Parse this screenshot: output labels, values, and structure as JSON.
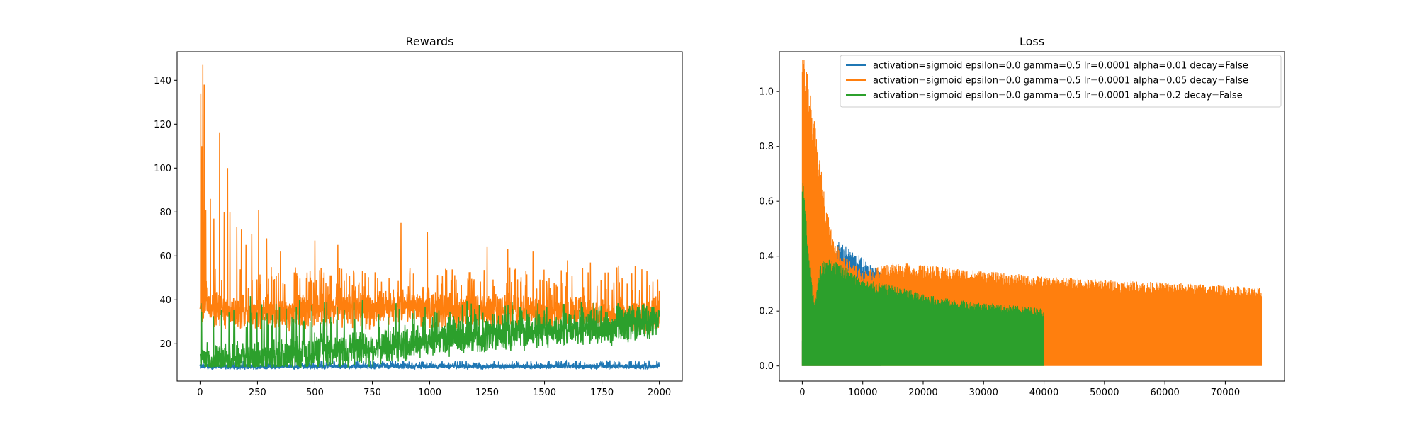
{
  "chart_data": [
    {
      "type": "line",
      "title": "Rewards",
      "xlabel": "",
      "ylabel": "",
      "xlim": [
        -100,
        2100
      ],
      "ylim": [
        3,
        153
      ],
      "xticks": [
        0,
        250,
        500,
        750,
        1000,
        1250,
        1500,
        1750,
        2000
      ],
      "yticks": [
        20,
        40,
        60,
        80,
        100,
        120,
        140
      ],
      "grid": false,
      "series": [
        {
          "color": "#1f77b4",
          "style": "noisy-band",
          "x_range": [
            0,
            2000
          ],
          "points": [
            [
              0,
              9.5
            ],
            [
              500,
              9.6
            ],
            [
              1000,
              9.7
            ],
            [
              1500,
              9.7
            ],
            [
              2000,
              9.6
            ]
          ],
          "low": 8,
          "high": 12
        },
        {
          "color": "#ff7f0e",
          "style": "noisy-band",
          "x_range": [
            0,
            2000
          ],
          "points": [
            [
              0,
              33
            ],
            [
              20,
              40
            ],
            [
              50,
              36
            ],
            [
              100,
              35
            ],
            [
              250,
              34
            ],
            [
              500,
              35
            ],
            [
              750,
              36
            ],
            [
              1000,
              36
            ],
            [
              1250,
              35
            ],
            [
              1500,
              34
            ],
            [
              1750,
              33
            ],
            [
              2000,
              32
            ]
          ],
          "spikes": [
            [
              3,
              134
            ],
            [
              8,
              110
            ],
            [
              12,
              147
            ],
            [
              18,
              138
            ],
            [
              25,
              81
            ],
            [
              45,
              86
            ],
            [
              60,
              77
            ],
            [
              85,
              116
            ],
            [
              105,
              80
            ],
            [
              120,
              100
            ],
            [
              130,
              80
            ],
            [
              160,
              73
            ],
            [
              180,
              72
            ],
            [
              200,
              65
            ],
            [
              225,
              70
            ],
            [
              255,
              81
            ],
            [
              290,
              68
            ],
            [
              350,
              62
            ],
            [
              500,
              67
            ],
            [
              600,
              65
            ],
            [
              875,
              75
            ],
            [
              990,
              71
            ],
            [
              1250,
              64
            ],
            [
              1340,
              63
            ],
            [
              1450,
              62
            ],
            [
              1600,
              58
            ],
            [
              1700,
              57
            ],
            [
              1880,
              52
            ],
            [
              2000,
              44
            ]
          ],
          "low": 24,
          "high": 52
        },
        {
          "color": "#2ca02c",
          "style": "noisy-band",
          "x_range": [
            0,
            2000
          ],
          "points": [
            [
              0,
              12
            ],
            [
              250,
              13
            ],
            [
              500,
              16
            ],
            [
              750,
              18
            ],
            [
              1000,
              22
            ],
            [
              1250,
              24
            ],
            [
              1500,
              26
            ],
            [
              1750,
              27
            ],
            [
              2000,
              30
            ]
          ],
          "low": 10,
          "high": 37
        }
      ]
    },
    {
      "type": "line",
      "title": "Loss",
      "xlabel": "",
      "ylabel": "",
      "xlim": [
        -3800,
        79800
      ],
      "ylim": [
        -0.055,
        1.145
      ],
      "xticks": [
        0,
        10000,
        20000,
        30000,
        40000,
        50000,
        60000,
        70000
      ],
      "yticks": [
        0.0,
        0.2,
        0.4,
        0.6,
        0.8,
        1.0
      ],
      "grid": false,
      "legend_position": "top-right",
      "series": [
        {
          "name": "activation=sigmoid epsilon=0.0 gamma=0.5 lr=0.0001 alpha=0.01 decay=False",
          "color": "#1f77b4",
          "style": "decay-band",
          "x_range": [
            0,
            13000
          ],
          "upper": [
            [
              0,
              0.09
            ],
            [
              300,
              0.06
            ],
            [
              1000,
              0.25
            ],
            [
              3000,
              0.33
            ],
            [
              6000,
              0.43
            ],
            [
              9000,
              0.39
            ],
            [
              11000,
              0.36
            ],
            [
              13000,
              0.33
            ]
          ],
          "lower": [
            [
              0,
              0.0
            ],
            [
              13000,
              0.0
            ]
          ]
        },
        {
          "name": "activation=sigmoid epsilon=0.0 gamma=0.5 lr=0.0001 alpha=0.05 decay=False",
          "color": "#ff7f0e",
          "style": "decay-band",
          "x_range": [
            0,
            76000
          ],
          "upper": [
            [
              0,
              1.09
            ],
            [
              1000,
              1.0
            ],
            [
              2000,
              0.85
            ],
            [
              3000,
              0.7
            ],
            [
              4000,
              0.55
            ],
            [
              5000,
              0.45
            ],
            [
              7000,
              0.38
            ],
            [
              10000,
              0.33
            ],
            [
              15000,
              0.36
            ],
            [
              20000,
              0.35
            ],
            [
              30000,
              0.33
            ],
            [
              40000,
              0.31
            ],
            [
              50000,
              0.3
            ],
            [
              60000,
              0.29
            ],
            [
              70000,
              0.28
            ],
            [
              76000,
              0.27
            ]
          ],
          "lower": [
            [
              0,
              0.0
            ],
            [
              76000,
              0.0
            ]
          ]
        },
        {
          "name": "activation=sigmoid epsilon=0.0 gamma=0.5 lr=0.0001 alpha=0.2 decay=False",
          "color": "#2ca02c",
          "style": "decay-band",
          "x_range": [
            0,
            40000
          ],
          "upper": [
            [
              0,
              0.7
            ],
            [
              500,
              0.55
            ],
            [
              1200,
              0.35
            ],
            [
              2000,
              0.22
            ],
            [
              3000,
              0.35
            ],
            [
              4000,
              0.38
            ],
            [
              6000,
              0.36
            ],
            [
              10000,
              0.3
            ],
            [
              15000,
              0.28
            ],
            [
              20000,
              0.25
            ],
            [
              25000,
              0.23
            ],
            [
              30000,
              0.22
            ],
            [
              35000,
              0.21
            ],
            [
              40000,
              0.2
            ]
          ],
          "lower": [
            [
              0,
              0.0
            ],
            [
              40000,
              0.0
            ]
          ]
        }
      ]
    }
  ]
}
